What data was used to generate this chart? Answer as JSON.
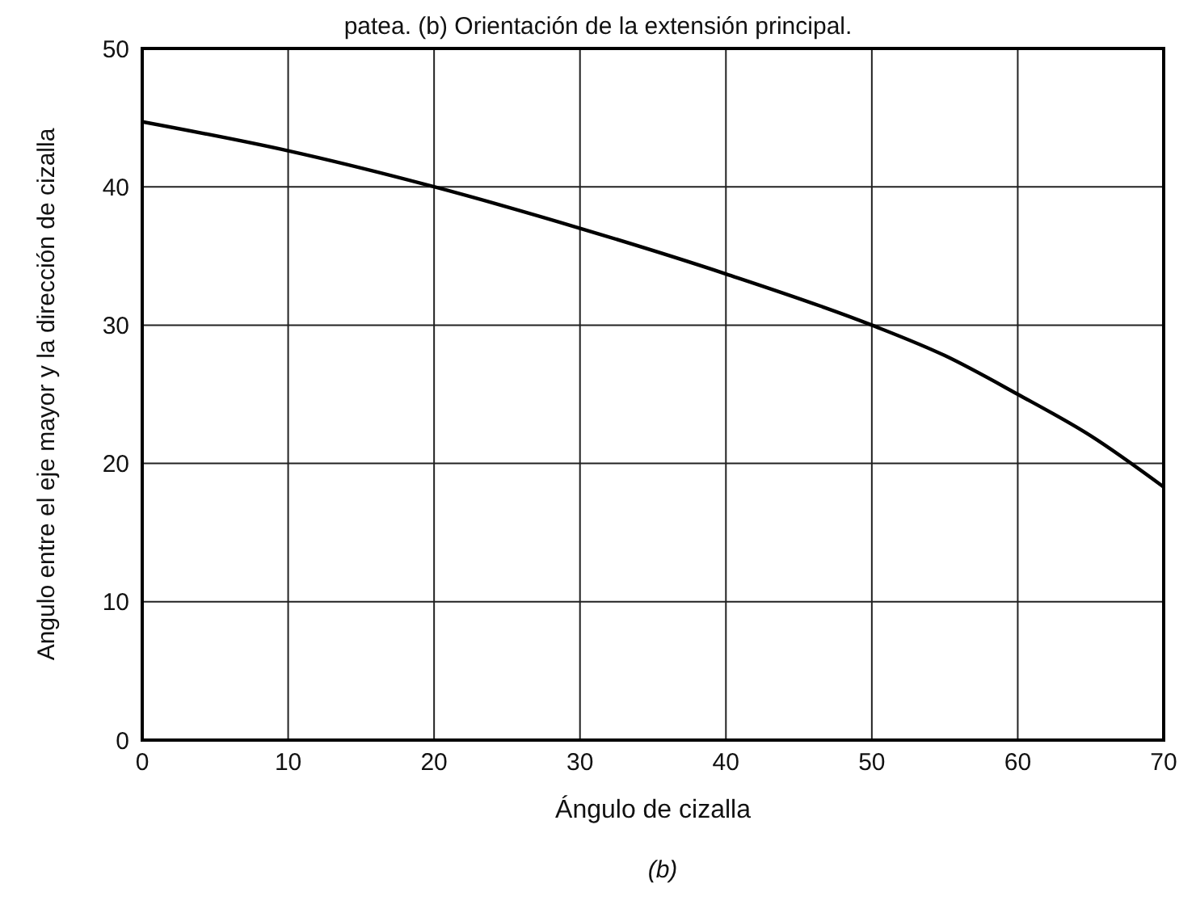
{
  "chart_data": {
    "type": "line",
    "annotations": [
      "patea. (b) Orientación de la extensión principal.",
      "(b)"
    ],
    "xlabel": "Ángulo de cizalla",
    "ylabel": "Angulo entre el eje mayor y la dirección de cizalla",
    "x": [
      0,
      10,
      20,
      30,
      40,
      50,
      55,
      60,
      65,
      70
    ],
    "series": [
      {
        "color": "#000000",
        "values": [
          44.7,
          42.6,
          40.0,
          37.0,
          33.7,
          30.0,
          27.8,
          25.0,
          22.0,
          18.3
        ]
      }
    ],
    "xlim": [
      0,
      70
    ],
    "xticks": [
      0,
      10,
      20,
      30,
      40,
      50,
      60,
      70
    ],
    "ylim": [
      0,
      50
    ],
    "yticks": [
      0,
      10,
      20,
      30,
      40,
      50
    ],
    "grid": true,
    "marker": "none",
    "line_style": "solid",
    "legend": false
  }
}
